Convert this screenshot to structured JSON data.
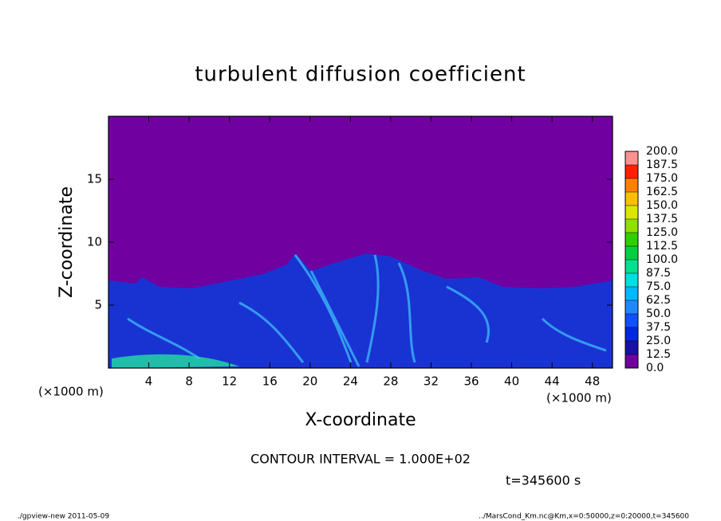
{
  "chart_data": {
    "type": "heatmap",
    "title": "turbulent diffusion coefficient",
    "x_label": "X-coordinate",
    "y_label": "Z-coordinate",
    "x_unit": "(×1000 m)",
    "y_unit": "(×1000 m)",
    "xlim": [
      0,
      50
    ],
    "ylim": [
      0,
      20
    ],
    "xticks": [
      4,
      8,
      12,
      16,
      20,
      24,
      28,
      32,
      36,
      40,
      44,
      48
    ],
    "yticks": [
      5,
      10,
      15
    ],
    "grid": false,
    "colorbar": {
      "levels": [
        {
          "value": 0,
          "label": "0.0"
        },
        {
          "value": 12.5,
          "label": "12.5"
        },
        {
          "value": 25,
          "label": "25.0"
        },
        {
          "value": 37.5,
          "label": "37.5"
        },
        {
          "value": 50,
          "label": "50.0"
        },
        {
          "value": 62.5,
          "label": "62.5"
        },
        {
          "value": 75,
          "label": "75.0"
        },
        {
          "value": 87.5,
          "label": "87.5"
        },
        {
          "value": 100,
          "label": "100.0"
        },
        {
          "value": 112.5,
          "label": "112.5"
        },
        {
          "value": 125,
          "label": "125.0"
        },
        {
          "value": 137.5,
          "label": "137.5"
        },
        {
          "value": 150,
          "label": "150.0"
        },
        {
          "value": 162.5,
          "label": "162.5"
        },
        {
          "value": 175,
          "label": "175.0"
        },
        {
          "value": 187.5,
          "label": "187.5"
        },
        {
          "value": 200,
          "label": "200.0"
        }
      ],
      "colors": [
        "#7000a0",
        "#1a10a8",
        "#0028e0",
        "#1050ff",
        "#2088ff",
        "#00b8ff",
        "#00e0e0",
        "#00e090",
        "#00d040",
        "#30d000",
        "#90e000",
        "#d8e800",
        "#f8c000",
        "#ff8000",
        "#ff2000",
        "#ff9090"
      ]
    },
    "annotations": [
      "CONTOUR INTERVAL = 1.000E+02",
      "t=345600 s"
    ],
    "footer_left": "./gpview-new  2011-05-09",
    "footer_right": "../MarsCond_Km.nc@Km,x=0:50000,z=0:20000,t=345600"
  }
}
